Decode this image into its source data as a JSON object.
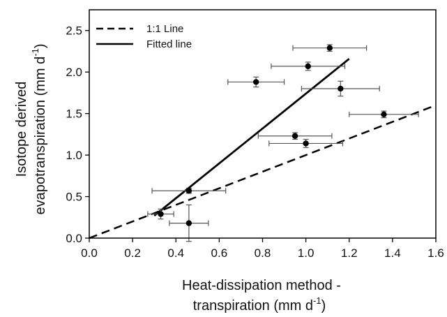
{
  "chart_data": {
    "type": "scatter",
    "xlabel_line1": "Heat-dissipation method -",
    "xlabel_line2": "transpiration (mm d",
    "ylabel_line1": "Isotope derived",
    "ylabel_line2": "evapotranspiration (mm d",
    "unit_exponent": "-1",
    "unit_close": ")",
    "xlim": [
      0.0,
      1.6
    ],
    "ylim": [
      0.0,
      2.75
    ],
    "x_ticks": [
      "0.0",
      "0.2",
      "0.4",
      "0.6",
      "0.8",
      "1.0",
      "1.2",
      "1.4",
      "1.6"
    ],
    "y_ticks": [
      "0.0",
      "0.5",
      "1.0",
      "1.5",
      "2.0",
      "2.5"
    ],
    "grid": false,
    "legend_position": "top-left",
    "legend": [
      {
        "label": "1:1 Line",
        "style": "dashed"
      },
      {
        "label": "Fitted line",
        "style": "solid"
      }
    ],
    "points": [
      {
        "x": 0.33,
        "y": 0.29,
        "xerr": 0.06,
        "yerr": 0.06
      },
      {
        "x": 0.46,
        "y": 0.18,
        "xerr": 0.09,
        "yerr": 0.22
      },
      {
        "x": 0.46,
        "y": 0.57,
        "xerr": 0.17,
        "yerr": 0.03
      },
      {
        "x": 0.77,
        "y": 1.88,
        "xerr": 0.13,
        "yerr": 0.06
      },
      {
        "x": 0.95,
        "y": 1.23,
        "xerr": 0.17,
        "yerr": 0.04
      },
      {
        "x": 1.0,
        "y": 1.14,
        "xerr": 0.17,
        "yerr": 0.05
      },
      {
        "x": 1.01,
        "y": 2.07,
        "xerr": 0.17,
        "yerr": 0.05
      },
      {
        "x": 1.11,
        "y": 2.29,
        "xerr": 0.17,
        "yerr": 0.04
      },
      {
        "x": 1.16,
        "y": 1.8,
        "xerr": 0.18,
        "yerr": 0.09
      },
      {
        "x": 1.36,
        "y": 1.49,
        "xerr": 0.16,
        "yerr": 0.04
      }
    ],
    "one_to_one_line": {
      "x": [
        0.0,
        1.6
      ],
      "y": [
        0.0,
        1.6
      ]
    },
    "fitted_line": {
      "x": [
        0.3,
        1.2
      ],
      "y": [
        0.27,
        2.16
      ]
    },
    "colors": {
      "points": "#000000",
      "error_bars": "#555555",
      "lines": "#000000"
    }
  }
}
